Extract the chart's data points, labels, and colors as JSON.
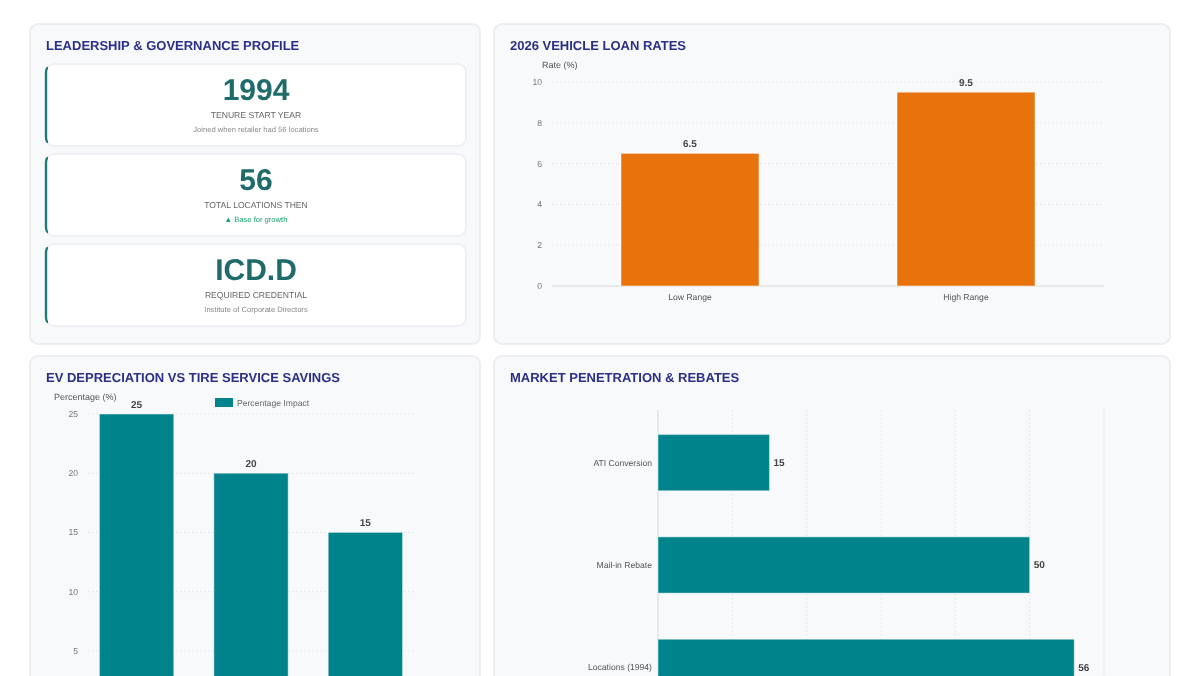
{
  "chart_data": [
    {
      "type": "other",
      "title": "LEADERSHIP & GOVERNANCE PROFILE",
      "annotations": [
        "1994",
        "TENURE START YEAR",
        "Joined when retailer had 56 locations",
        "56",
        "TOTAL LOCATIONS THEN",
        "▲ Base for growth",
        "ICD.D",
        "REQUIRED CREDENTIAL",
        "Institute of Corporate Directors"
      ]
    },
    {
      "type": "bar",
      "title": "2026 VEHICLE LOAN RATES",
      "ylabel": "Rate (%)",
      "categories": [
        "Low Range",
        "High Range"
      ],
      "values": [
        6.5,
        9.5
      ],
      "color": "#e8730c",
      "ylim": [
        0,
        10
      ],
      "yticks": [
        0,
        2,
        4,
        6,
        8,
        10
      ],
      "grid": "y",
      "data_labels": true
    },
    {
      "type": "bar",
      "title": "EV DEPRECIATION VS TIRE SERVICE SAVINGS",
      "ylabel": "Percentage (%)",
      "categories": [
        null,
        null,
        null
      ],
      "series": [
        {
          "name": "Percentage Impact",
          "color": "#00838a",
          "values": [
            25,
            20,
            15
          ]
        }
      ],
      "ylim": [
        0,
        25
      ],
      "yticks": [
        5,
        10,
        15,
        20,
        25
      ],
      "grid": "y",
      "legend": "top",
      "data_labels": true
    },
    {
      "type": "bar",
      "title": "MARKET PENETRATION & REBATES",
      "orientation": "horizontal",
      "categories": [
        "ATI Conversion",
        "Mail-in Rebate",
        "Locations (1994)"
      ],
      "values": [
        15,
        50,
        56
      ],
      "color": "#00838a",
      "xlim": [
        0,
        60
      ],
      "xticks": [
        {
          "value": 0,
          "label": null
        },
        {
          "value": 10,
          "label": null
        },
        {
          "value": 20,
          "label": null
        },
        {
          "value": 30,
          "label": null
        },
        {
          "value": 40,
          "label": null
        },
        {
          "value": 50,
          "label": null
        },
        {
          "value": 60,
          "label": null
        }
      ],
      "grid": "x",
      "data_labels": true
    }
  ]
}
